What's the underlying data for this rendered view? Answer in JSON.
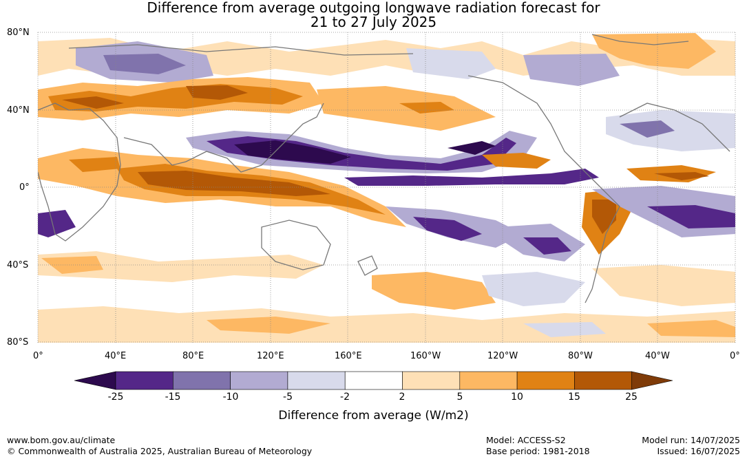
{
  "title": {
    "line1": "Difference from average outgoing longwave radiation forecast for",
    "line2": "21 to 27 July 2025"
  },
  "axes": {
    "lat_labels": [
      "80°N",
      "40°N",
      "0°",
      "40°S",
      "80°S"
    ],
    "lon_labels": [
      "0°",
      "40°E",
      "80°E",
      "120°E",
      "160°E",
      "160°W",
      "120°W",
      "80°W",
      "40°W",
      "0°"
    ]
  },
  "colorbar": {
    "title": "Difference from average (W/m2)",
    "ticks": [
      "-25",
      "-15",
      "-10",
      "-5",
      "-2",
      "2",
      "5",
      "10",
      "15",
      "25"
    ],
    "colors": [
      "#2d0a4e",
      "#542788",
      "#8073ac",
      "#b2abd2",
      "#d8daeb",
      "#ffffff",
      "#fee0b6",
      "#fdb863",
      "#e08214",
      "#b35806",
      "#7f3b08"
    ]
  },
  "footer": {
    "url": "www.bom.gov.au/climate",
    "copyright": "© Commonwealth of Australia 2025, Australian Bureau of Meteorology",
    "model": "Model: ACCESS-S2",
    "base_period": "Base period: 1981-2018",
    "model_run": "Model run: 14/07/2025",
    "issued": "Issued: 16/07/2025"
  }
}
